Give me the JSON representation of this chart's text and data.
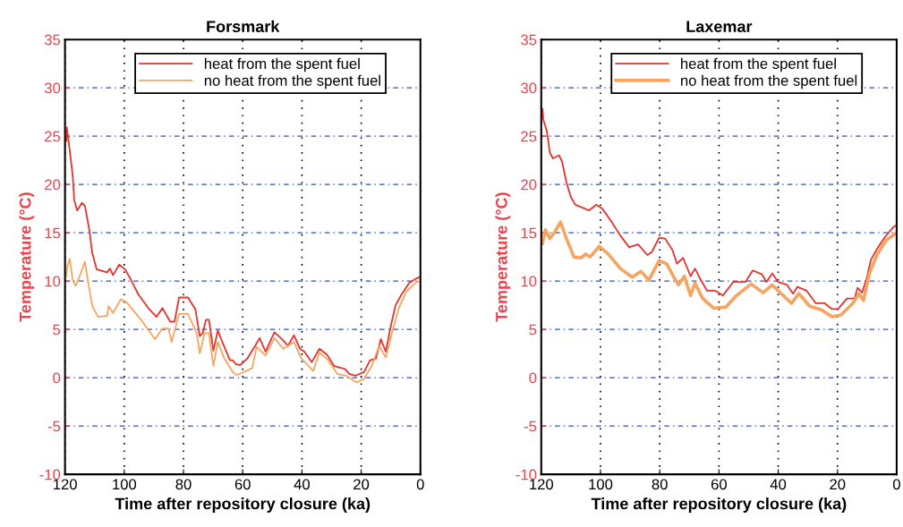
{
  "chart_data": [
    {
      "type": "line",
      "title": "Forsmark",
      "xlabel": "Time after repository closure (ka)",
      "ylabel": "Temperature (°C)",
      "xlim": [
        120,
        0
      ],
      "ylim": [
        -10,
        35
      ],
      "xticks": [
        120,
        100,
        80,
        60,
        40,
        20,
        0
      ],
      "yticks": [
        -10,
        -5,
        0,
        5,
        10,
        15,
        20,
        25,
        30,
        35
      ],
      "grid": true,
      "legend": "top",
      "line_style": "solid",
      "marker": "none",
      "series": [
        {
          "name": "heat from the spent fuel",
          "color": "#e8322e",
          "x": [
            119.6,
            119.4,
            118.4,
            117.4,
            116.9,
            115.9,
            114.3,
            113.3,
            111.8,
            110.8,
            109.3,
            105.8,
            104.8,
            103.8,
            101.7,
            99.7,
            97.7,
            95.2,
            91.6,
            89.1,
            87.1,
            84.5,
            83.0,
            81.5,
            78.5,
            76.0,
            74.5,
            73.5,
            72.4,
            71.4,
            69.9,
            68.4,
            66.9,
            64.3,
            63.4,
            62.3,
            60.9,
            58.4,
            55.8,
            54.3,
            52.3,
            49.3,
            46.8,
            44.7,
            42.7,
            40.7,
            39.2,
            36.7,
            34.1,
            31.6,
            29.1,
            25.5,
            24.0,
            22.0,
            19.0,
            17.0,
            15.0,
            13.4,
            11.7,
            9.9,
            8.4,
            6.4,
            3.8,
            1.3,
            0
          ],
          "values": [
            24.5,
            25.9,
            23.5,
            20.9,
            18.4,
            17.3,
            18.1,
            17.8,
            15.3,
            12.9,
            11.2,
            10.9,
            11.3,
            10.6,
            11.7,
            11.2,
            10.1,
            8.6,
            7.1,
            6.3,
            7.2,
            5.8,
            5.8,
            8.3,
            8.3,
            7.1,
            4.3,
            4.6,
            6.0,
            6.0,
            2.8,
            4.9,
            3.7,
            1.8,
            1.8,
            1.4,
            1.3,
            2.0,
            3.3,
            4.1,
            2.7,
            4.7,
            4.0,
            3.3,
            4.4,
            3.0,
            2.7,
            1.6,
            3.0,
            2.4,
            1.2,
            0.9,
            0.4,
            0.2,
            0.6,
            1.8,
            2.0,
            4.0,
            2.7,
            5.5,
            7.5,
            8.6,
            9.8,
            10.3,
            10.4
          ]
        },
        {
          "name": "no heat from the spent fuel",
          "color": "#f7a460",
          "x": [
            119.6,
            119.4,
            118.4,
            117.4,
            116.4,
            114.8,
            113.3,
            112.3,
            110.8,
            108.8,
            105.8,
            105.3,
            103.8,
            101.2,
            99.2,
            94.6,
            89.6,
            87.1,
            85.1,
            84.0,
            81.5,
            78.5,
            75.5,
            74.5,
            72.9,
            71.4,
            69.9,
            68.4,
            66.4,
            63.4,
            62.3,
            60.9,
            56.8,
            55.3,
            52.3,
            49.3,
            46.3,
            42.7,
            40.2,
            36.2,
            34.1,
            31.1,
            28.1,
            25.1,
            21.5,
            19.0,
            16.5,
            13.9,
            11.7,
            9.4,
            7.3,
            4.8,
            1.3,
            0
          ],
          "values": [
            10.5,
            11.3,
            12.3,
            10.1,
            9.5,
            10.7,
            12.0,
            10.1,
            7.4,
            6.3,
            6.4,
            7.4,
            6.7,
            8.1,
            7.8,
            6.1,
            4.0,
            5.1,
            5.1,
            3.7,
            6.6,
            6.6,
            4.6,
            2.5,
            4.6,
            4.6,
            1.2,
            3.7,
            2.1,
            0.6,
            0.3,
            0.4,
            1.0,
            3.2,
            2.3,
            4.1,
            3.0,
            3.7,
            2.0,
            0.7,
            2.6,
            1.8,
            0.4,
            0.2,
            -0.5,
            -0.1,
            1.2,
            3.3,
            2.1,
            4.9,
            7.2,
            8.9,
            9.9,
            10.0
          ]
        }
      ]
    },
    {
      "type": "line",
      "title": "Laxemar",
      "xlabel": "Time after repository closure (ka)",
      "ylabel": "Temperature (°C)",
      "xlim": [
        120,
        0
      ],
      "ylim": [
        -10,
        35
      ],
      "xticks": [
        120,
        100,
        80,
        60,
        40,
        20,
        0
      ],
      "yticks": [
        -10,
        -5,
        0,
        5,
        10,
        15,
        20,
        25,
        30,
        35
      ],
      "grid": true,
      "legend": "top",
      "line_style": "solid",
      "marker": "none",
      "series": [
        {
          "name": "heat from the spent fuel",
          "color": "#e8322e",
          "x": [
            119.6,
            119.3,
            118.1,
            117.1,
            116.1,
            114.0,
            113.0,
            111.5,
            110.0,
            108.5,
            106.0,
            103.9,
            101.4,
            99.4,
            96.4,
            93.3,
            90.3,
            87.3,
            84.2,
            82.7,
            80.2,
            78.2,
            75.7,
            74.2,
            72.1,
            69.6,
            68.1,
            66.1,
            64.0,
            61.2,
            58.7,
            55.2,
            51.1,
            48.6,
            45.5,
            44.0,
            42.0,
            40.0,
            37.0,
            35.0,
            33.5,
            30.4,
            27.3,
            24.3,
            21.8,
            19.8,
            16.8,
            14.2,
            13.2,
            11.7,
            10.2,
            8.7,
            6.7,
            4.1,
            1.1,
            0
          ],
          "values": [
            27.8,
            26.7,
            25.5,
            23.3,
            22.7,
            23.0,
            22.4,
            20.2,
            18.7,
            17.9,
            17.6,
            17.3,
            17.9,
            17.5,
            16.2,
            14.7,
            13.5,
            13.8,
            12.7,
            13.0,
            14.5,
            14.4,
            13.2,
            11.8,
            12.4,
            10.5,
            11.3,
            10.1,
            9.0,
            9.0,
            8.5,
            9.9,
            9.9,
            11.1,
            10.7,
            9.9,
            10.8,
            9.9,
            9.6,
            8.7,
            9.4,
            9.0,
            7.7,
            7.7,
            7.1,
            7.1,
            8.2,
            8.2,
            9.3,
            8.8,
            10.2,
            12.2,
            13.3,
            14.5,
            15.6,
            15.8
          ]
        },
        {
          "name": "no heat from the spent fuel",
          "color": "#f7a460",
          "x": [
            119.6,
            118.6,
            117.1,
            115.6,
            113.5,
            111.5,
            109.0,
            106.5,
            105.0,
            103.5,
            100.4,
            97.4,
            93.3,
            89.3,
            86.3,
            83.7,
            80.2,
            77.7,
            75.2,
            73.7,
            71.7,
            69.6,
            68.1,
            65.5,
            61.8,
            57.7,
            54.1,
            49.1,
            45.1,
            42.0,
            39.0,
            35.5,
            33.0,
            29.4,
            25.3,
            21.8,
            18.8,
            14.8,
            12.7,
            11.2,
            9.2,
            6.7,
            3.6,
            0
          ],
          "values": [
            13.9,
            15.3,
            14.4,
            15.0,
            16.1,
            14.4,
            12.5,
            12.4,
            12.8,
            12.5,
            13.6,
            12.8,
            11.3,
            10.4,
            11.0,
            10.1,
            12.1,
            11.8,
            10.4,
            9.6,
            10.5,
            8.5,
            9.8,
            8.2,
            7.2,
            7.3,
            8.5,
            9.7,
            8.8,
            9.6,
            8.7,
            7.7,
            8.7,
            7.4,
            7.0,
            6.3,
            6.5,
            7.7,
            8.7,
            8.0,
            10.8,
            12.7,
            14.2,
            15.0
          ]
        }
      ]
    }
  ]
}
